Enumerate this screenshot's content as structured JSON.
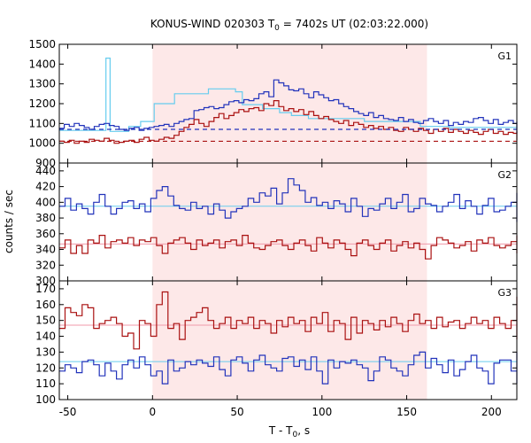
{
  "chart_data": {
    "type": "line",
    "title": "KONUS-WIND 020303 T",
    "title_subscript": "0",
    "title_suffix": " = 7402s UT (02:03:22.000)",
    "ylabel": "counts / sec",
    "xlabel": "T - T",
    "xlabel_subscript": "0",
    "xlabel_suffix": ", s",
    "xlim": [
      -55,
      215
    ],
    "x_ticks": [
      -50,
      0,
      50,
      100,
      150,
      200
    ],
    "shaded_interval": [
      0,
      162
    ],
    "colors": {
      "shade": "#fde8e8",
      "blue": "#2233bb",
      "red": "#aa1111",
      "lightblue": "#66ccee",
      "pink": "#f09aaa"
    },
    "panels": [
      {
        "label": "G1",
        "ylim": [
          900,
          1500
        ],
        "y_ticks": [
          900,
          1000,
          1100,
          1200,
          1300,
          1400,
          1500
        ],
        "blue_series": {
          "x0": -55,
          "dx": 2.944,
          "values": [
            1075,
            1095,
            1085,
            1100,
            1090,
            1080,
            1070,
            1085,
            1095,
            1100,
            1090,
            1085,
            1070,
            1065,
            1075,
            1080,
            1065,
            1075,
            1080,
            1085,
            1090,
            1095,
            1085,
            1100,
            1110,
            1120,
            1125,
            1165,
            1170,
            1180,
            1185,
            1175,
            1180,
            1195,
            1210,
            1215,
            1205,
            1220,
            1215,
            1225,
            1250,
            1260,
            1235,
            1320,
            1305,
            1290,
            1270,
            1265,
            1275,
            1250,
            1230,
            1260,
            1245,
            1230,
            1215,
            1220,
            1200,
            1185,
            1175,
            1160,
            1150,
            1140,
            1155,
            1130,
            1140,
            1125,
            1120,
            1115,
            1130,
            1110,
            1120,
            1105,
            1100,
            1115,
            1125,
            1110,
            1100,
            1115,
            1090,
            1105,
            1095,
            1110,
            1105,
            1125,
            1130,
            1115,
            1100,
            1120,
            1095,
            1105,
            1115,
            1100,
            1080,
            1095,
            1070,
            1085,
            1080,
            1100,
            1095,
            1105,
            1110,
            1080,
            1090,
            1100,
            1075,
            1085,
            1095,
            1060,
            1080,
            1100,
            1090,
            1075,
            1085,
            1095,
            1080,
            1090,
            1080,
            1085,
            1060,
            1080,
            1090,
            1075,
            1085,
            1095,
            1080,
            1070,
            1090,
            1080,
            1070,
            1095,
            1075,
            1085,
            1070,
            1060,
            1090,
            1100,
            1075,
            1085,
            1090,
            1060,
            1050,
            1070,
            1090,
            1075,
            1080,
            1070,
            1080,
            1085,
            1095,
            1060,
            1090,
            1070,
            1075,
            1085,
            1080,
            1100,
            1075,
            1050,
            1080,
            1095,
            1070,
            1080,
            1090,
            1060,
            1080,
            1075,
            1060,
            1080,
            1070,
            1050,
            1080,
            1090,
            1100,
            1070,
            1075,
            1090,
            1080,
            1060,
            1070,
            1090,
            1080,
            1075,
            1060,
            1080,
            1095,
            1070,
            1080,
            1090,
            1060,
            1070,
            1080,
            1090,
            1050,
            1075,
            1085,
            1080,
            1060,
            1090,
            1100,
            1070
          ]
        },
        "red_series": {
          "x0": -55,
          "dx": 2.944,
          "values": [
            1010,
            1005,
            1015,
            1000,
            1010,
            1005,
            1020,
            1015,
            1010,
            1025,
            1015,
            1000,
            1005,
            1010,
            1015,
            1005,
            1020,
            1030,
            1015,
            1010,
            1020,
            1030,
            1025,
            1040,
            1060,
            1080,
            1095,
            1120,
            1100,
            1085,
            1110,
            1130,
            1150,
            1125,
            1140,
            1155,
            1170,
            1160,
            1175,
            1180,
            1165,
            1200,
            1190,
            1215,
            1185,
            1165,
            1175,
            1160,
            1170,
            1145,
            1160,
            1140,
            1125,
            1135,
            1120,
            1110,
            1100,
            1115,
            1090,
            1105,
            1095,
            1080,
            1090,
            1075,
            1085,
            1070,
            1080,
            1065,
            1060,
            1080,
            1070,
            1060,
            1075,
            1065,
            1050,
            1070,
            1060,
            1075,
            1055,
            1070,
            1060,
            1050,
            1065,
            1055,
            1045,
            1060,
            1070,
            1050,
            1060,
            1045,
            1055,
            1050,
            1060,
            1040,
            1050,
            1055,
            1045,
            1060,
            1050,
            1040,
            1055,
            1045,
            1060,
            1035,
            1050,
            1040,
            1055,
            1030,
            1045,
            1040,
            1050,
            1035,
            1045,
            1030,
            1040,
            1050,
            1035,
            1045,
            1025,
            1040,
            1035,
            1045,
            1030,
            1020,
            1035,
            1040,
            1030,
            1045,
            1035,
            1025,
            1040,
            1030,
            1020,
            1035,
            1040,
            1025,
            1030,
            1040,
            1020,
            1030,
            1035,
            1025,
            1040,
            1030,
            1020,
            1035,
            1025,
            1040,
            1030,
            1015,
            1030,
            1040,
            1025,
            1035,
            1020,
            1030,
            1040,
            1025,
            1035,
            1020,
            1030,
            1025,
            1035,
            1030,
            1020,
            1040,
            1030,
            1025,
            1035,
            1020,
            1030,
            1040,
            1025,
            1030,
            1035,
            1020,
            1030,
            1040,
            1025,
            1035,
            1020,
            1030,
            1025,
            1035,
            1020,
            1030,
            1040,
            1025,
            1030,
            1035,
            1020,
            1030,
            1025,
            1040,
            1030,
            1020,
            1035,
            1025,
            1030,
            1020,
            1035,
            1030,
            1025,
            1040,
            1030,
            1020,
            1035,
            1025
          ]
        },
        "lightblue_steps": [
          [
            -55,
            1065
          ],
          [
            -27.5,
            1430
          ],
          [
            -25,
            1060
          ],
          [
            -14,
            1085
          ],
          [
            -7,
            1110
          ],
          [
            1,
            1200
          ],
          [
            13,
            1250
          ],
          [
            33,
            1275
          ],
          [
            49,
            1260
          ],
          [
            53,
            1195
          ],
          [
            65,
            1175
          ],
          [
            75,
            1155
          ],
          [
            82,
            1140
          ],
          [
            92,
            1125
          ],
          [
            125,
            1110
          ],
          [
            158,
            1085
          ],
          [
            175,
            1080
          ],
          [
            215,
            1080
          ]
        ],
        "blue_bg": 1070,
        "red_bg": 1010
      },
      {
        "label": "G2",
        "ylim": [
          300,
          450
        ],
        "y_ticks": [
          300,
          320,
          340,
          360,
          380,
          400,
          420,
          440
        ],
        "blue_series": {
          "x0": -55,
          "dx": 3.375,
          "values": [
            395,
            405,
            390,
            398,
            392,
            385,
            400,
            410,
            395,
            385,
            392,
            400,
            402,
            392,
            398,
            388,
            405,
            415,
            420,
            408,
            396,
            392,
            390,
            400,
            392,
            395,
            385,
            398,
            390,
            380,
            388,
            392,
            395,
            405,
            400,
            412,
            408,
            418,
            398,
            412,
            430,
            422,
            415,
            400,
            406,
            396,
            400,
            392,
            402,
            398,
            388,
            405,
            395,
            382,
            392,
            390,
            398,
            405,
            392,
            400,
            410,
            388,
            392,
            405,
            398,
            396,
            388,
            395,
            400,
            410,
            392,
            402,
            395,
            385,
            396,
            405,
            388,
            390,
            395,
            400,
            405,
            392,
            398,
            408,
            398,
            395,
            385,
            405,
            410,
            398,
            402,
            395,
            390,
            398,
            388,
            405,
            395,
            400,
            410,
            392,
            398,
            395,
            390,
            405,
            412,
            398,
            385,
            375,
            395,
            402,
            390,
            396,
            392,
            402,
            398,
            385,
            392,
            400,
            405,
            410,
            392,
            385,
            395,
            388,
            403,
            398,
            410,
            396,
            392,
            386,
            400,
            402
          ]
        },
        "red_series": {
          "x0": -55,
          "dx": 3.375,
          "values": [
            342,
            352,
            335,
            345,
            335,
            352,
            348,
            358,
            342,
            350,
            352,
            348,
            355,
            345,
            352,
            350,
            355,
            345,
            335,
            348,
            352,
            355,
            348,
            340,
            352,
            345,
            348,
            352,
            342,
            350,
            352,
            345,
            358,
            348,
            342,
            340,
            345,
            350,
            352,
            345,
            340,
            348,
            352,
            345,
            338,
            355,
            348,
            342,
            352,
            348,
            340,
            332,
            348,
            352,
            345,
            340,
            348,
            352,
            338,
            345,
            350,
            342,
            348,
            340,
            328,
            345,
            355,
            352,
            348,
            342,
            345,
            350,
            338,
            352,
            348,
            355,
            345,
            342,
            345,
            350,
            342,
            355,
            348,
            352,
            340,
            342,
            345,
            338,
            352,
            355,
            348,
            342,
            340,
            345,
            350,
            342,
            338,
            352,
            346,
            340,
            345,
            352,
            348,
            345,
            355,
            348,
            342,
            345,
            338,
            348,
            352,
            345,
            335,
            345,
            350,
            355,
            342,
            348,
            345,
            338,
            345,
            342,
            340,
            345,
            352,
            358,
            345,
            345,
            338,
            355,
            348
          ]
        },
        "blue_level": 395,
        "red_level": 347
      },
      {
        "label": "G3",
        "ylim": [
          100,
          175
        ],
        "y_ticks": [
          100,
          110,
          120,
          130,
          140,
          150,
          160,
          170
        ],
        "blue_series": {
          "x0": -55,
          "dx": 3.375,
          "values": [
            118,
            122,
            120,
            117,
            124,
            125,
            122,
            115,
            123,
            118,
            113,
            122,
            125,
            120,
            127,
            122,
            115,
            118,
            110,
            125,
            118,
            120,
            124,
            122,
            125,
            123,
            121,
            127,
            119,
            115,
            125,
            127,
            123,
            118,
            125,
            128,
            122,
            120,
            118,
            126,
            127,
            121,
            125,
            119,
            127,
            118,
            110,
            125,
            120,
            124,
            123,
            125,
            122,
            120,
            112,
            118,
            127,
            125,
            120,
            118,
            115,
            122,
            128,
            130,
            120,
            126,
            122,
            117,
            125,
            115,
            119,
            124,
            128,
            120,
            118,
            110,
            123,
            125,
            125,
            118,
            129,
            122,
            116,
            118,
            123,
            126,
            118,
            114,
            121,
            124,
            126,
            122,
            129,
            121,
            119,
            125,
            122,
            118,
            115,
            125,
            123,
            128,
            120,
            122,
            118,
            126,
            123,
            117,
            128,
            130,
            120,
            118,
            122,
            125,
            110,
            118,
            128,
            120,
            125,
            124,
            118,
            121,
            130,
            126,
            122,
            124,
            118,
            120,
            125,
            120,
            115
          ]
        },
        "red_series": {
          "x0": -55,
          "dx": 3.375,
          "values": [
            145,
            158,
            155,
            153,
            160,
            158,
            145,
            148,
            150,
            152,
            148,
            140,
            142,
            132,
            150,
            148,
            140,
            160,
            168,
            145,
            148,
            138,
            150,
            152,
            155,
            158,
            150,
            145,
            148,
            152,
            145,
            150,
            148,
            152,
            145,
            150,
            148,
            142,
            150,
            146,
            152,
            148,
            150,
            143,
            152,
            148,
            155,
            143,
            150,
            148,
            138,
            152,
            142,
            150,
            148,
            144,
            150,
            146,
            152,
            148,
            143,
            150,
            154,
            148,
            150,
            145,
            152,
            146,
            149,
            150,
            145,
            148,
            152,
            148,
            150,
            145,
            152,
            148,
            145,
            150,
            142,
            152,
            150,
            148,
            145,
            152,
            150,
            148,
            145,
            150,
            152,
            148,
            142,
            150,
            158,
            148,
            150,
            145,
            152,
            148,
            150,
            146,
            138,
            150,
            152,
            160,
            148,
            155,
            145,
            150,
            140,
            148,
            152,
            145,
            150,
            146,
            153,
            148,
            165,
            140,
            148,
            150,
            142,
            155,
            148,
            150,
            146,
            152,
            148,
            150,
            148
          ]
        },
        "blue_level": 124,
        "red_level": 147
      }
    ]
  }
}
